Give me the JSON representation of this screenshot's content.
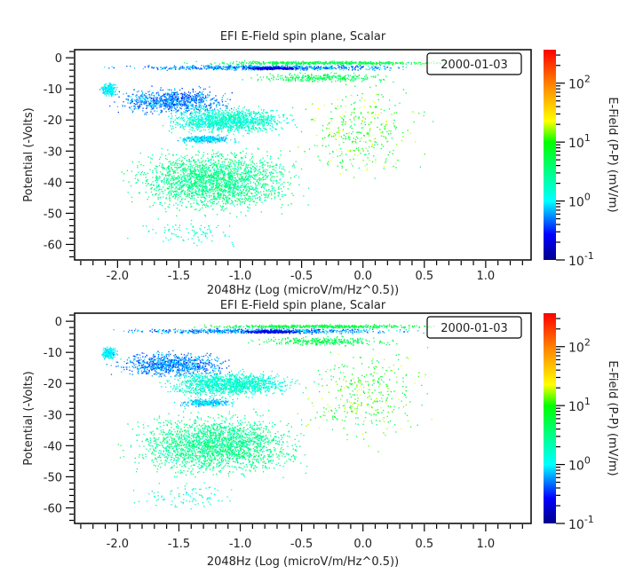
{
  "chart_data": [
    {
      "type": "scatter",
      "title": "EFI  E-Field spin plane, Scalar",
      "xlabel": "2048Hz (Log (microV/m/Hz^0.5))",
      "ylabel": "Potential (-Volts)",
      "xlim": [
        -2.35,
        1.37
      ],
      "ylim": [
        -65,
        2.6
      ],
      "xticks": [
        -2.0,
        -1.5,
        -1.0,
        -0.5,
        0.0,
        0.5,
        1.0
      ],
      "xtick_labels": [
        "-2.0",
        "-1.5",
        "-1.0",
        "-0.5",
        "0.0",
        "0.5",
        "1.0"
      ],
      "yticks": [
        0,
        -10,
        -20,
        -30,
        -40,
        -50,
        -60
      ],
      "ytick_labels": [
        "0",
        "-10",
        "-20",
        "-30",
        "-40",
        "-50",
        "-60"
      ],
      "grid": false,
      "annotation": "2000-01-03",
      "colorbar": {
        "label": "E-Field (P-P) (mV/m)",
        "scale": "log",
        "range": [
          0.1,
          370
        ],
        "ticks": [
          {
            "base": "10",
            "exp": "-1"
          },
          {
            "base": "10",
            "exp": "0"
          },
          {
            "base": "10",
            "exp": "1"
          },
          {
            "base": "10",
            "exp": "2"
          }
        ],
        "colormap": "rainbow"
      },
      "density_regions": [
        {
          "x": [
            -2.2,
            0.6
          ],
          "y": [
            -4,
            -2
          ],
          "efield": [
            0.3,
            1.2
          ],
          "approx_points": 700
        },
        {
          "x": [
            -1.5,
            0.85
          ],
          "y": [
            -2.2,
            -0.8
          ],
          "efield": [
            3,
            10
          ],
          "approx_points": 500
        },
        {
          "x": [
            -1.0,
            -0.5
          ],
          "y": [
            -3.8,
            -2.6
          ],
          "efield": [
            0.15,
            0.3
          ],
          "approx_points": 250
        },
        {
          "x": [
            -1.0,
            0.3
          ],
          "y": [
            -8,
            -4.5
          ],
          "efield": [
            3,
            8
          ],
          "approx_points": 300
        },
        {
          "x": [
            -2.15,
            -2.0
          ],
          "y": [
            -12.5,
            -7.5
          ],
          "efield": [
            0.7,
            1.3
          ],
          "approx_points": 200
        },
        {
          "x": [
            -2.1,
            -1.0
          ],
          "y": [
            -18.5,
            -9
          ],
          "efield": [
            0.3,
            1.0
          ],
          "approx_points": 900
        },
        {
          "x": [
            -1.7,
            -0.5
          ],
          "y": [
            -25,
            -15
          ],
          "efield": [
            0.8,
            3
          ],
          "approx_points": 1300
        },
        {
          "x": [
            -1.55,
            -1.0
          ],
          "y": [
            -27.5,
            -24.5
          ],
          "efield": [
            0.5,
            1.5
          ],
          "approx_points": 300
        },
        {
          "x": [
            -2.0,
            -0.4
          ],
          "y": [
            -51,
            -28
          ],
          "efield": [
            1.5,
            6
          ],
          "approx_points": 2200
        },
        {
          "x": [
            -0.6,
            0.6
          ],
          "y": [
            -42,
            -5
          ],
          "efield": [
            3,
            25
          ],
          "approx_points": 350
        },
        {
          "x": [
            -2.0,
            -0.9
          ],
          "y": [
            -62,
            -50
          ],
          "efield": [
            0.8,
            3
          ],
          "approx_points": 90
        }
      ]
    },
    {
      "type": "scatter",
      "title": "EFI  E-Field spin plane, Scalar",
      "xlabel": "2048Hz (Log (microV/m/Hz^0.5))",
      "ylabel": "Potential (-Volts)",
      "xlim": [
        -2.35,
        1.37
      ],
      "ylim": [
        -65,
        2.6
      ],
      "xticks": [
        -2.0,
        -1.5,
        -1.0,
        -0.5,
        0.0,
        0.5,
        1.0
      ],
      "xtick_labels": [
        "-2.0",
        "-1.5",
        "-1.0",
        "-0.5",
        "0.0",
        "0.5",
        "1.0"
      ],
      "yticks": [
        0,
        -10,
        -20,
        -30,
        -40,
        -50,
        -60
      ],
      "ytick_labels": [
        "0",
        "-10",
        "-20",
        "-30",
        "-40",
        "-50",
        "-60"
      ],
      "grid": false,
      "annotation": "2000-01-03",
      "colorbar": {
        "label": "E-Field (P-P) (mV/m)",
        "scale": "log",
        "range": [
          0.1,
          370
        ],
        "ticks": [
          {
            "base": "10",
            "exp": "-1"
          },
          {
            "base": "10",
            "exp": "0"
          },
          {
            "base": "10",
            "exp": "1"
          },
          {
            "base": "10",
            "exp": "2"
          }
        ],
        "colormap": "rainbow"
      },
      "density_regions": [
        {
          "x": [
            -2.2,
            0.6
          ],
          "y": [
            -4,
            -2
          ],
          "efield": [
            0.3,
            1.2
          ],
          "approx_points": 700
        },
        {
          "x": [
            -1.5,
            0.85
          ],
          "y": [
            -2.2,
            -0.8
          ],
          "efield": [
            3,
            10
          ],
          "approx_points": 500
        },
        {
          "x": [
            -1.0,
            -0.5
          ],
          "y": [
            -3.8,
            -2.6
          ],
          "efield": [
            0.15,
            0.3
          ],
          "approx_points": 250
        },
        {
          "x": [
            -1.0,
            0.3
          ],
          "y": [
            -8,
            -4.5
          ],
          "efield": [
            3,
            8
          ],
          "approx_points": 300
        },
        {
          "x": [
            -2.15,
            -2.0
          ],
          "y": [
            -12.5,
            -7.5
          ],
          "efield": [
            0.7,
            1.3
          ],
          "approx_points": 200
        },
        {
          "x": [
            -2.1,
            -1.0
          ],
          "y": [
            -18.5,
            -9
          ],
          "efield": [
            0.3,
            1.0
          ],
          "approx_points": 900
        },
        {
          "x": [
            -1.7,
            -0.5
          ],
          "y": [
            -25,
            -15
          ],
          "efield": [
            0.8,
            3
          ],
          "approx_points": 1300
        },
        {
          "x": [
            -1.55,
            -1.0
          ],
          "y": [
            -27.5,
            -24.5
          ],
          "efield": [
            0.5,
            1.5
          ],
          "approx_points": 300
        },
        {
          "x": [
            -2.0,
            -0.4
          ],
          "y": [
            -51,
            -28
          ],
          "efield": [
            1.5,
            6
          ],
          "approx_points": 2200
        },
        {
          "x": [
            -0.6,
            0.6
          ],
          "y": [
            -42,
            -5
          ],
          "efield": [
            3,
            25
          ],
          "approx_points": 350
        },
        {
          "x": [
            -2.0,
            -0.9
          ],
          "y": [
            -62,
            -50
          ],
          "efield": [
            0.8,
            3
          ],
          "approx_points": 90
        }
      ]
    }
  ]
}
